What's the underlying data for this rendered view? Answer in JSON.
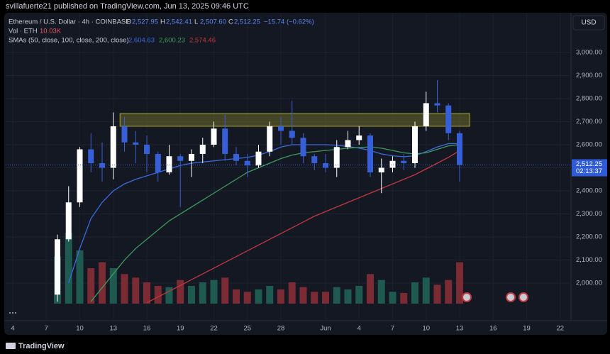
{
  "header": {
    "publisher": "svillafuerte21 published on TradingView.com, Jun 13, 2025 09:46 UTC",
    "footer": "TradingView"
  },
  "chart_data": {
    "type": "candlestick",
    "symbol": "Ethereum / U.S. Dollar · 4h · COINBASE",
    "ohlc_legend": [
      {
        "label": "O",
        "value": "2,527.95"
      },
      {
        "label": "H",
        "value": "2,542.41"
      },
      {
        "label": "L",
        "value": "2,507.60"
      },
      {
        "label": "C",
        "value": "2,512.25"
      }
    ],
    "change": "−15.74 (−0.62%)",
    "volume_title": "Vol · ETH",
    "volume_value": "10.03K",
    "sma_title": "SMAs (50, close, 100, close, 200, close)",
    "currency": "USD",
    "last_price": {
      "value": 2512.25,
      "label": "2,512.25"
    },
    "countdown": "02:13:37",
    "categories": [
      "4",
      null,
      null,
      "7",
      null,
      null,
      "10",
      null,
      null,
      "13",
      null,
      null,
      "16",
      null,
      null,
      "19",
      null,
      null,
      "22",
      null,
      null,
      "25",
      null,
      null,
      "28",
      null,
      null,
      null,
      "Jun",
      null,
      null,
      "4",
      null,
      null,
      "7",
      null,
      null,
      "10",
      null,
      null,
      "13",
      null,
      null,
      "16",
      null,
      null,
      "19",
      null,
      null,
      "22"
    ],
    "open": [
      null,
      null,
      null,
      null,
      1950,
      2190,
      2350,
      2580,
      2520,
      2500,
      2680,
      2610,
      2600,
      2560,
      2480,
      2550,
      2530,
      2560,
      2600,
      2670,
      2560,
      2530,
      2510,
      2570,
      2680,
      2660,
      2630,
      2550,
      2520,
      2500,
      2590,
      2620,
      2640,
      2480,
      2500,
      2530,
      2520,
      2680,
      2780,
      2770,
      2650,
      null,
      null,
      null,
      null,
      null,
      null,
      null,
      null,
      null
    ],
    "high": [
      null,
      null,
      null,
      null,
      2210,
      2420,
      2590,
      2650,
      2610,
      2740,
      2720,
      2660,
      2640,
      2570,
      2600,
      2560,
      2580,
      2630,
      2700,
      2730,
      2590,
      2560,
      2600,
      2700,
      2720,
      2790,
      2650,
      2560,
      2560,
      2620,
      2660,
      2680,
      2650,
      2540,
      2550,
      2560,
      2700,
      2830,
      2880,
      2780,
      2660,
      null,
      null,
      null,
      null,
      null,
      null,
      null,
      null,
      null
    ],
    "low": [
      null,
      null,
      null,
      null,
      1920,
      2180,
      2330,
      2480,
      2440,
      2450,
      2570,
      2520,
      2480,
      2440,
      2470,
      2330,
      2460,
      2520,
      2590,
      2530,
      2510,
      2460,
      2500,
      2550,
      2600,
      2600,
      2520,
      2490,
      2480,
      2460,
      2580,
      2600,
      2460,
      2390,
      2480,
      2490,
      2500,
      2660,
      2740,
      2620,
      2440,
      null,
      null,
      null,
      null,
      null,
      null,
      null,
      null,
      null
    ],
    "close": [
      null,
      null,
      null,
      null,
      2190,
      2350,
      2580,
      2520,
      2500,
      2680,
      2610,
      2600,
      2560,
      2480,
      2550,
      2530,
      2560,
      2600,
      2670,
      2560,
      2530,
      2510,
      2570,
      2680,
      2660,
      2630,
      2550,
      2520,
      2500,
      2590,
      2620,
      2640,
      2480,
      2500,
      2530,
      2520,
      2680,
      2780,
      2770,
      2650,
      2512.25,
      null,
      null,
      null,
      null,
      null,
      null,
      null,
      null,
      null
    ],
    "volume": [
      null,
      null,
      null,
      null,
      40,
      60,
      45,
      30,
      35,
      30,
      25,
      22,
      18,
      15,
      14,
      20,
      15,
      18,
      20,
      22,
      12,
      10,
      12,
      15,
      12,
      18,
      14,
      10,
      10,
      14,
      12,
      15,
      25,
      20,
      10,
      9,
      18,
      22,
      16,
      20,
      35,
      null,
      null,
      null,
      null,
      null,
      null,
      null,
      null,
      null
    ],
    "series": [
      {
        "color": "#3d6ae0",
        "value_label": "2,604.63",
        "values": [
          null,
          null,
          null,
          null,
          null,
          2000,
          2150,
          2280,
          2350,
          2400,
          2430,
          2450,
          2465,
          2480,
          2495,
          2510,
          2520,
          2525,
          2530,
          2535,
          2540,
          2545,
          2555,
          2570,
          2590,
          2600,
          2600,
          2600,
          2600,
          2598,
          2592,
          2585,
          2575,
          2560,
          2552,
          2548,
          2552,
          2570,
          2590,
          2605,
          2604.63,
          null,
          null,
          null,
          null,
          null,
          null,
          null,
          null,
          null
        ]
      },
      {
        "color": "#3d9a5c",
        "value_label": "2,600.23",
        "values": [
          null,
          null,
          null,
          null,
          null,
          null,
          null,
          1920,
          1980,
          2040,
          2100,
          2150,
          2190,
          2230,
          2270,
          2300,
          2330,
          2360,
          2390,
          2420,
          2450,
          2480,
          2500,
          2520,
          2540,
          2555,
          2565,
          2570,
          2575,
          2580,
          2585,
          2588,
          2590,
          2585,
          2575,
          2565,
          2560,
          2565,
          2580,
          2595,
          2600.23,
          null,
          null,
          null,
          null,
          null,
          null,
          null,
          null,
          null
        ]
      },
      {
        "color": "#c0393f",
        "value_label": "2,574.46",
        "values": [
          null,
          null,
          null,
          null,
          null,
          null,
          null,
          null,
          null,
          null,
          null,
          null,
          1915,
          1940,
          1965,
          1990,
          2015,
          2040,
          2065,
          2090,
          2115,
          2140,
          2165,
          2190,
          2215,
          2240,
          2265,
          2290,
          2310,
          2330,
          2350,
          2370,
          2390,
          2410,
          2430,
          2450,
          2470,
          2495,
          2520,
          2545,
          2574.46,
          null,
          null,
          null,
          null,
          null,
          null,
          null,
          null,
          null
        ]
      }
    ],
    "zone": {
      "high": 2735,
      "low": 2680,
      "color": "#6b6a2a"
    },
    "up_color": "#ffffff",
    "down_color": "#3760d8",
    "ylim": [
      1911,
      3172
    ],
    "yticks": [
      {
        "value": 2000,
        "label": "2,000.00"
      },
      {
        "value": 2100,
        "label": "2,100.00"
      },
      {
        "value": 2200,
        "label": "2,200.00"
      },
      {
        "value": 2300,
        "label": "2,300.00"
      },
      {
        "value": 2400,
        "label": "2,400.00"
      },
      {
        "value": 2500,
        "label": "2,500.00"
      },
      {
        "value": 2600,
        "label": "2,600.00"
      },
      {
        "value": 2700,
        "label": "2,700.00"
      },
      {
        "value": 2800,
        "label": "2,800.00"
      },
      {
        "value": 2900,
        "label": "2,900.00"
      },
      {
        "value": 3000,
        "label": "3,000.00"
      }
    ],
    "grid": true
  }
}
